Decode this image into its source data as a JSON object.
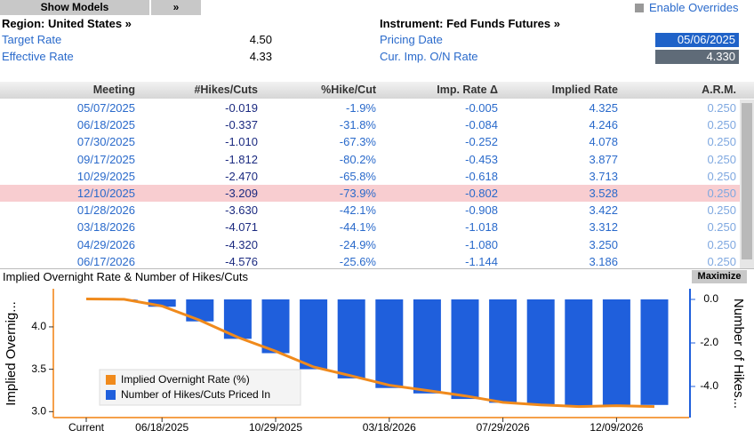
{
  "header": {
    "show_models": "Show Models",
    "nav": "»",
    "enable_overrides": "Enable Overrides",
    "region": "Region: United States »",
    "instrument": "Instrument: Fed Funds Futures »",
    "fields": [
      {
        "label": "Target Rate",
        "value": "4.50"
      },
      {
        "label": "Effective Rate",
        "value": "4.33"
      },
      {
        "label": "Pricing Date",
        "value": "05/06/2025"
      },
      {
        "label": "Cur. Imp. O/N Rate",
        "value": "4.330"
      }
    ]
  },
  "table": {
    "columns": [
      "Meeting",
      "#Hikes/Cuts",
      "%Hike/Cut",
      "Imp. Rate Δ",
      "Implied Rate",
      "A.R.M."
    ],
    "highlight_row": 5,
    "rows": [
      [
        "05/07/2025",
        "-0.019",
        "-1.9%",
        "-0.005",
        "4.325",
        "0.250"
      ],
      [
        "06/18/2025",
        "-0.337",
        "-31.8%",
        "-0.084",
        "4.246",
        "0.250"
      ],
      [
        "07/30/2025",
        "-1.010",
        "-67.3%",
        "-0.252",
        "4.078",
        "0.250"
      ],
      [
        "09/17/2025",
        "-1.812",
        "-80.2%",
        "-0.453",
        "3.877",
        "0.250"
      ],
      [
        "10/29/2025",
        "-2.470",
        "-65.8%",
        "-0.618",
        "3.713",
        "0.250"
      ],
      [
        "12/10/2025",
        "-3.209",
        "-73.9%",
        "-0.802",
        "3.528",
        "0.250"
      ],
      [
        "01/28/2026",
        "-3.630",
        "-42.1%",
        "-0.908",
        "3.422",
        "0.250"
      ],
      [
        "03/18/2026",
        "-4.071",
        "-44.1%",
        "-1.018",
        "3.312",
        "0.250"
      ],
      [
        "04/29/2026",
        "-4.320",
        "-24.9%",
        "-1.080",
        "3.250",
        "0.250"
      ],
      [
        "06/17/2026",
        "-4.576",
        "-25.6%",
        "-1.144",
        "3.186",
        "0.250"
      ]
    ]
  },
  "chart_panel": {
    "maximize": "Maximize"
  },
  "chart_data": {
    "type": "combo",
    "title": "Implied Overnight Rate & Number of Hikes/Cuts",
    "y_label": "Implied Overnig...",
    "y2_label": "Number of Hikes...",
    "categories": [
      "Current",
      null,
      "06/18/2025",
      null,
      null,
      "10/29/2025",
      null,
      null,
      "03/18/2026",
      null,
      null,
      "07/29/2026",
      null,
      null,
      "12/09/2026",
      null
    ],
    "series": [
      {
        "name": "Implied Overnight Rate (%)",
        "type": "line",
        "color": "#f08a1c",
        "values": [
          4.33,
          4.325,
          4.246,
          4.078,
          3.877,
          3.713,
          3.528,
          3.422,
          3.312,
          3.25,
          3.186,
          3.11,
          3.08,
          3.06,
          3.07,
          3.06
        ]
      },
      {
        "name": "Number of Hikes/Cuts Priced In",
        "type": "bar",
        "axis": "y2",
        "color": "#1f5fdc",
        "values": [
          null,
          -0.019,
          -0.337,
          -1.01,
          -1.812,
          -2.47,
          -3.209,
          -3.63,
          -4.071,
          -4.32,
          -4.576,
          -4.75,
          -4.85,
          -4.9,
          -4.92,
          -4.85
        ]
      }
    ],
    "ylim": [
      2.93,
      4.45
    ],
    "yticks": [
      {
        "value": 3,
        "label": "3.0"
      },
      3.5,
      {
        "value": 4,
        "label": "4.0"
      }
    ],
    "y2lim": [
      -5.43,
      0.49
    ],
    "y2ticks": [
      {
        "value": -4,
        "label": "-4.0"
      },
      {
        "value": -2,
        "label": "-2.0"
      },
      {
        "value": 0,
        "label": "0.0"
      }
    ],
    "legend": "lower-left"
  }
}
